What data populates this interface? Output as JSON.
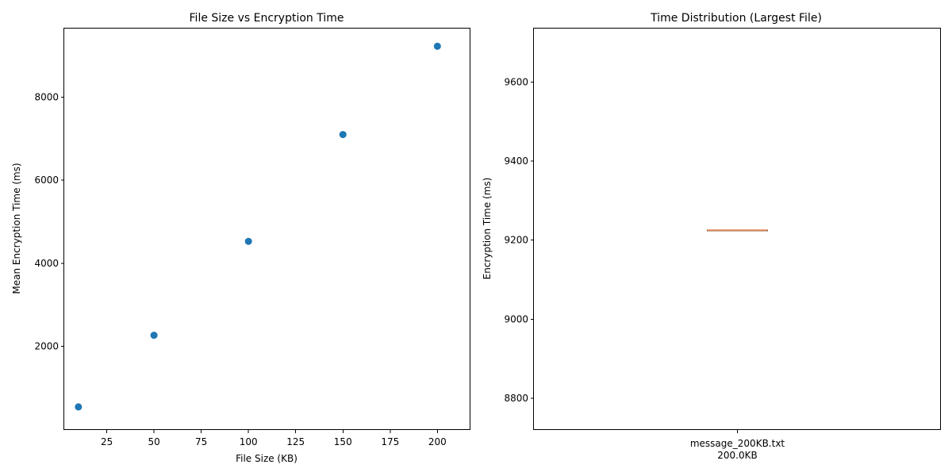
{
  "chart_data": [
    {
      "type": "scatter",
      "title": "File Size vs Encryption Time",
      "xlabel": "File Size (KB)",
      "ylabel": "Mean Encryption Time (ms)",
      "x": [
        10,
        50,
        100,
        150,
        200
      ],
      "y": [
        545,
        2270,
        4530,
        7100,
        9225
      ],
      "xlim": [
        2.5,
        217.5
      ],
      "ylim": [
        -10,
        9650
      ],
      "xticks": [
        25,
        50,
        75,
        100,
        125,
        150,
        175,
        200
      ],
      "yticks": [
        2000,
        4000,
        6000,
        8000
      ],
      "grid": false,
      "marker_color": "#1f77b4"
    },
    {
      "type": "box",
      "title": "Time Distribution (Largest File)",
      "xlabel": "",
      "ylabel": "Encryption Time (ms)",
      "categories": [
        "message_200KB.txt\n200.0KB"
      ],
      "category_lines": [
        "message_200KB.txt",
        "200.0KB"
      ],
      "box": {
        "min": 9225,
        "q1": 9225,
        "median": 9225,
        "q3": 9225,
        "max": 9225
      },
      "ylim": [
        8720,
        9735
      ],
      "yticks": [
        8800,
        9000,
        9200,
        9400,
        9600
      ],
      "grid": false,
      "median_color": "#dd8452",
      "box_color": "#000000"
    }
  ]
}
